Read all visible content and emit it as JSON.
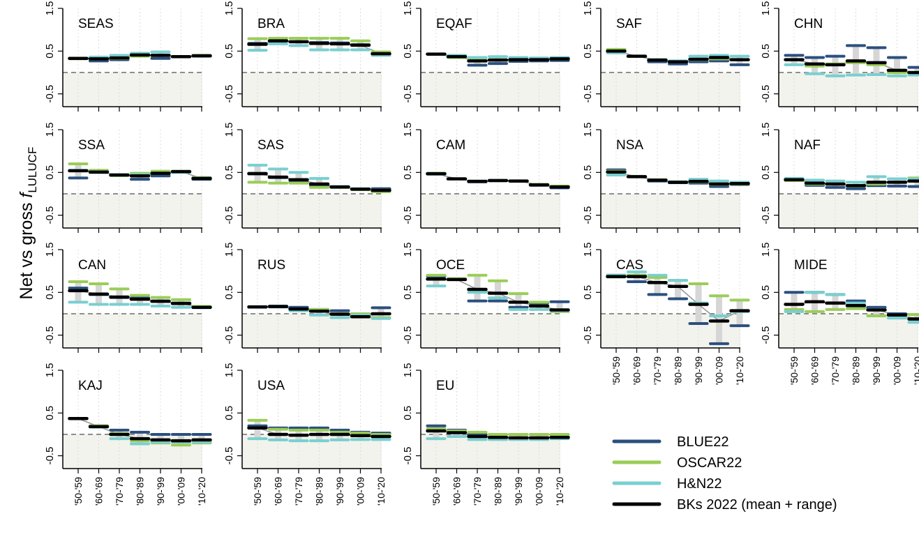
{
  "figure": {
    "ylabel_prefix": "Net vs gross ",
    "ylabel_var": "f",
    "ylabel_sub": "LULUCF",
    "yticks": [
      "1.5",
      "0.5",
      "-0.5"
    ],
    "xticks": [
      "'50-'59",
      "'60-'69",
      "'70-'79",
      "'80-'89",
      "'90-'99",
      "'00-'09",
      "'10-'20"
    ]
  },
  "colors": {
    "blue": "#2b4f7e",
    "green": "#9acd57",
    "cyan": "#79cfd0",
    "black": "#000000",
    "range_fill": "#d6d6d6",
    "neg_fill": "#f1f3ec",
    "zero_line": "#777777",
    "mean_line": "#999999"
  },
  "legend": [
    {
      "label": "BLUE22",
      "color_key": "blue"
    },
    {
      "label": "OSCAR22",
      "color_key": "green"
    },
    {
      "label": "H&N22",
      "color_key": "cyan"
    },
    {
      "label": "BKs 2022 (mean + range)",
      "color_key": "black"
    }
  ],
  "chart_data": {
    "type": "line",
    "ylim": [
      -0.8,
      1.5
    ],
    "x": [
      "'50-'59",
      "'60-'69",
      "'70-'79",
      "'80-'89",
      "'90-'99",
      "'00-'09",
      "'10-'20"
    ],
    "series_names": [
      "BLUE22",
      "OSCAR22",
      "H&N22",
      "BKs 2022 (mean + range)"
    ],
    "panels": [
      {
        "title": "SEAS",
        "blue": [
          0.33,
          0.27,
          0.3,
          0.4,
          0.33,
          0.37,
          0.38
        ],
        "green": [
          0.32,
          0.33,
          0.33,
          0.38,
          0.4,
          0.37,
          0.4
        ],
        "cyan": [
          0.33,
          0.36,
          0.4,
          0.45,
          0.48,
          0.37,
          0.38
        ],
        "mean": [
          0.33,
          0.32,
          0.34,
          0.41,
          0.4,
          0.37,
          0.39
        ]
      },
      {
        "title": "BRA",
        "blue": [
          0.68,
          0.74,
          0.72,
          0.7,
          0.69,
          0.65,
          0.44
        ],
        "green": [
          0.79,
          0.8,
          0.8,
          0.8,
          0.8,
          0.74,
          0.48
        ],
        "cyan": [
          0.52,
          0.67,
          0.63,
          0.53,
          0.53,
          0.53,
          0.4
        ],
        "mean": [
          0.66,
          0.74,
          0.72,
          0.68,
          0.67,
          0.64,
          0.44
        ]
      },
      {
        "title": "EQAF",
        "blue": [
          0.43,
          0.38,
          0.17,
          0.21,
          0.26,
          0.27,
          0.28
        ],
        "green": [
          0.43,
          0.35,
          0.3,
          0.3,
          0.3,
          0.3,
          0.33
        ],
        "cyan": [
          0.43,
          0.4,
          0.35,
          0.37,
          0.35,
          0.34,
          0.35
        ],
        "mean": [
          0.43,
          0.37,
          0.27,
          0.29,
          0.3,
          0.3,
          0.32
        ]
      },
      {
        "title": "SAF",
        "blue": [
          0.5,
          0.38,
          0.25,
          0.2,
          0.25,
          0.27,
          0.18
        ],
        "green": [
          0.54,
          0.38,
          0.3,
          0.26,
          0.3,
          0.32,
          0.3
        ],
        "cyan": [
          0.46,
          0.38,
          0.3,
          0.27,
          0.38,
          0.4,
          0.38
        ],
        "mean": [
          0.5,
          0.38,
          0.29,
          0.25,
          0.31,
          0.35,
          0.3
        ]
      },
      {
        "title": "CHN",
        "blue": [
          0.4,
          0.35,
          0.38,
          0.63,
          0.58,
          0.35,
          0.12
        ],
        "green": [
          0.3,
          0.15,
          0.2,
          0.23,
          0.18,
          0.0,
          -0.03
        ],
        "cyan": [
          0.18,
          -0.03,
          -0.08,
          -0.06,
          -0.05,
          -0.08,
          -0.06
        ],
        "mean": [
          0.3,
          0.2,
          0.18,
          0.27,
          0.23,
          0.05,
          0.0
        ]
      },
      {
        "title": "SSA",
        "blue": [
          0.37,
          0.5,
          0.43,
          0.34,
          0.42,
          0.52,
          0.34
        ],
        "green": [
          0.7,
          0.55,
          0.43,
          0.48,
          0.53,
          0.53,
          0.38
        ],
        "cyan": [
          0.55,
          0.5,
          0.45,
          0.45,
          0.48,
          0.5,
          0.37
        ],
        "mean": [
          0.54,
          0.51,
          0.44,
          0.42,
          0.48,
          0.52,
          0.36
        ]
      },
      {
        "title": "SAS",
        "blue": [
          0.48,
          0.38,
          0.27,
          0.2,
          0.15,
          0.1,
          0.12
        ],
        "green": [
          0.27,
          0.25,
          0.25,
          0.15,
          0.15,
          0.1,
          0.05
        ],
        "cyan": [
          0.67,
          0.58,
          0.5,
          0.36,
          0.17,
          0.12,
          0.08
        ],
        "mean": [
          0.47,
          0.39,
          0.33,
          0.23,
          0.16,
          0.11,
          0.08
        ]
      },
      {
        "title": "CAM",
        "blue": [
          0.46,
          0.35,
          0.28,
          0.31,
          0.3,
          0.2,
          0.14
        ],
        "green": [
          0.48,
          0.35,
          0.3,
          0.31,
          0.3,
          0.22,
          0.18
        ],
        "cyan": [
          0.46,
          0.35,
          0.3,
          0.32,
          0.3,
          0.21,
          0.16
        ],
        "mean": [
          0.47,
          0.35,
          0.29,
          0.31,
          0.3,
          0.21,
          0.16
        ]
      },
      {
        "title": "NSA",
        "blue": [
          0.56,
          0.4,
          0.3,
          0.26,
          0.25,
          0.17,
          0.22
        ],
        "green": [
          0.53,
          0.41,
          0.33,
          0.27,
          0.28,
          0.22,
          0.23
        ],
        "cyan": [
          0.44,
          0.4,
          0.32,
          0.28,
          0.34,
          0.3,
          0.27
        ],
        "mean": [
          0.51,
          0.4,
          0.32,
          0.27,
          0.29,
          0.23,
          0.24
        ]
      },
      {
        "title": "NAF",
        "blue": [
          0.33,
          0.2,
          0.15,
          0.12,
          0.19,
          0.18,
          0.17
        ],
        "green": [
          0.31,
          0.23,
          0.23,
          0.18,
          0.23,
          0.27,
          0.37
        ],
        "cyan": [
          0.36,
          0.32,
          0.3,
          0.27,
          0.4,
          0.35,
          0.35
        ],
        "mean": [
          0.33,
          0.25,
          0.23,
          0.19,
          0.27,
          0.27,
          0.3
        ]
      },
      {
        "title": "CAN",
        "blue": [
          0.6,
          0.45,
          0.38,
          0.37,
          0.3,
          0.25,
          0.15
        ],
        "green": [
          0.75,
          0.7,
          0.58,
          0.43,
          0.38,
          0.33,
          0.17
        ],
        "cyan": [
          0.27,
          0.22,
          0.22,
          0.22,
          0.18,
          0.15,
          0.14
        ],
        "mean": [
          0.54,
          0.46,
          0.39,
          0.34,
          0.29,
          0.24,
          0.15
        ]
      },
      {
        "title": "RUS",
        "blue": [
          0.16,
          0.16,
          0.15,
          0.1,
          0.07,
          0.0,
          0.14
        ],
        "green": [
          0.16,
          0.17,
          0.1,
          0.1,
          0.0,
          0.0,
          -0.09
        ],
        "cyan": [
          0.15,
          0.18,
          0.07,
          -0.03,
          -0.09,
          -0.03,
          -0.11
        ],
        "mean": [
          0.16,
          0.17,
          0.11,
          0.06,
          -0.01,
          -0.07,
          0.0
        ]
      },
      {
        "title": "OCE",
        "blue": [
          0.88,
          0.8,
          0.3,
          0.3,
          0.15,
          0.25,
          0.28
        ],
        "green": [
          0.9,
          0.82,
          0.9,
          0.77,
          0.47,
          0.27,
          0.05
        ],
        "cyan": [
          0.65,
          0.8,
          0.5,
          0.37,
          0.1,
          0.1,
          0.07
        ],
        "mean": [
          0.81,
          0.8,
          0.57,
          0.48,
          0.27,
          0.18,
          0.09
        ]
      },
      {
        "title": "CAS",
        "blue": [
          0.9,
          0.75,
          0.45,
          0.35,
          -0.23,
          -0.7,
          -0.28
        ],
        "green": [
          0.86,
          0.9,
          0.85,
          0.78,
          0.7,
          0.42,
          0.32
        ],
        "cyan": [
          0.9,
          0.98,
          0.9,
          0.78,
          0.25,
          -0.05,
          0.05
        ],
        "mean": [
          0.87,
          0.87,
          0.73,
          0.64,
          0.22,
          -0.17,
          0.07
        ]
      },
      {
        "title": "MIDE",
        "blue": [
          0.5,
          0.5,
          0.45,
          0.3,
          0.15,
          0.0,
          -0.13
        ],
        "green": [
          0.1,
          0.05,
          0.1,
          0.12,
          -0.05,
          -0.03,
          -0.02
        ],
        "cyan": [
          0.05,
          0.5,
          0.45,
          0.25,
          0.1,
          -0.1,
          -0.2
        ],
        "mean": [
          0.22,
          0.28,
          0.25,
          0.19,
          0.09,
          -0.03,
          -0.12
        ]
      },
      {
        "title": "KAJ",
        "blue": [
          0.37,
          0.2,
          0.1,
          0.05,
          0.0,
          0.0,
          0.0
        ],
        "green": [
          0.37,
          0.2,
          0.02,
          -0.15,
          -0.2,
          -0.25,
          -0.2
        ],
        "cyan": [
          0.37,
          0.17,
          -0.1,
          -0.22,
          -0.18,
          -0.18,
          -0.18
        ],
        "mean": [
          0.37,
          0.18,
          0.0,
          -0.1,
          -0.13,
          -0.15,
          -0.13
        ]
      },
      {
        "title": "USA",
        "blue": [
          0.2,
          0.15,
          0.15,
          0.15,
          0.1,
          0.05,
          0.03
        ],
        "green": [
          0.33,
          0.12,
          0.1,
          0.1,
          0.05,
          0.03,
          0.0
        ],
        "cyan": [
          -0.1,
          -0.13,
          -0.15,
          -0.15,
          -0.13,
          -0.12,
          -0.12
        ],
        "mean": [
          0.15,
          0.0,
          -0.02,
          0.0,
          0.0,
          -0.03,
          -0.05
        ]
      },
      {
        "title": "EU",
        "blue": [
          0.2,
          0.1,
          0.0,
          -0.07,
          -0.1,
          -0.1,
          -0.07
        ],
        "green": [
          0.13,
          0.08,
          0.05,
          0.0,
          0.0,
          0.0,
          0.0
        ],
        "cyan": [
          -0.1,
          -0.05,
          -0.12,
          -0.12,
          -0.12,
          -0.12,
          -0.1
        ],
        "mean": [
          0.08,
          0.04,
          -0.05,
          -0.07,
          -0.08,
          -0.08,
          -0.07
        ]
      }
    ]
  }
}
